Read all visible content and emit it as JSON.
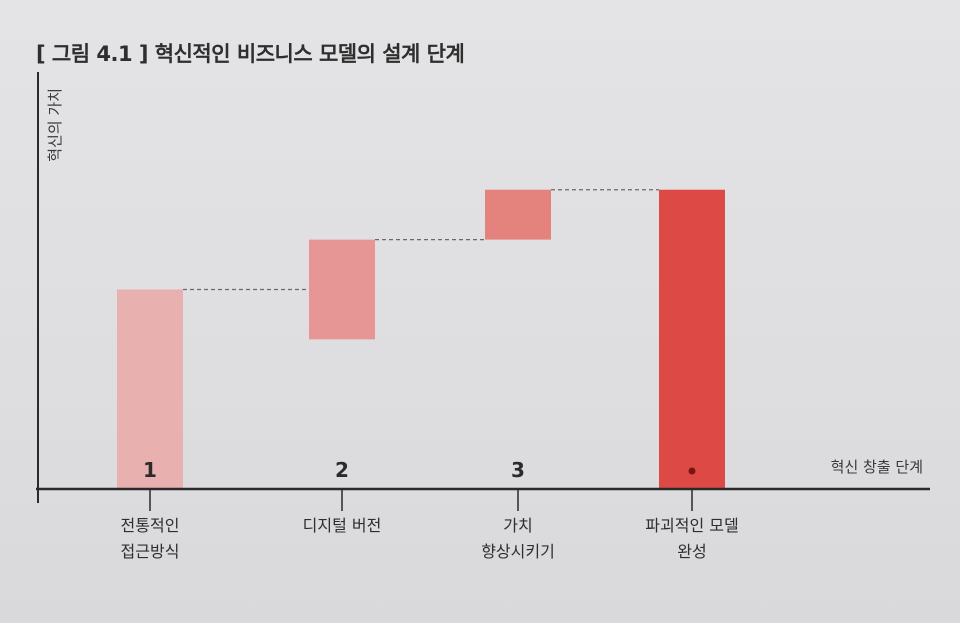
{
  "title": "[ 그림 4.1 ] 혁신적인 비즈니스 모델의 설계 단계",
  "chart_data": {
    "type": "bar",
    "subtype": "waterfall",
    "title": "[ 그림 4.1 ] 혁신적인 비즈니스 모델의 설계 단계",
    "ylabel": "혁신의 가치",
    "xlabel": "혁신 창출 단계",
    "categories": [
      {
        "number": "1",
        "lines": [
          "전통적인",
          "접근방식"
        ]
      },
      {
        "number": "2",
        "lines": [
          "디지털 버전"
        ]
      },
      {
        "number": "3",
        "lines": [
          "가치",
          "향상시키기"
        ]
      },
      {
        "number": "",
        "lines": [
          "파괴적인 모델",
          "완성"
        ]
      }
    ],
    "bars": [
      {
        "start": 0,
        "end": 2.0,
        "color": "#eaabab",
        "opacity": 0.9
      },
      {
        "start": 1.5,
        "end": 2.5,
        "color": "#e88e8e",
        "opacity": 0.9
      },
      {
        "start": 2.5,
        "end": 3.0,
        "color": "#e47c78",
        "opacity": 0.95
      },
      {
        "start": 0,
        "end": 3.0,
        "color": "#dd4a45",
        "opacity": 1
      }
    ],
    "connectors": true,
    "final_marker": true,
    "grid": false,
    "ylim": [
      0,
      4.1
    ],
    "colors": {
      "axis": "#2a2a2a",
      "connector": "#6a6a6a",
      "marker": "#7a1414"
    }
  }
}
